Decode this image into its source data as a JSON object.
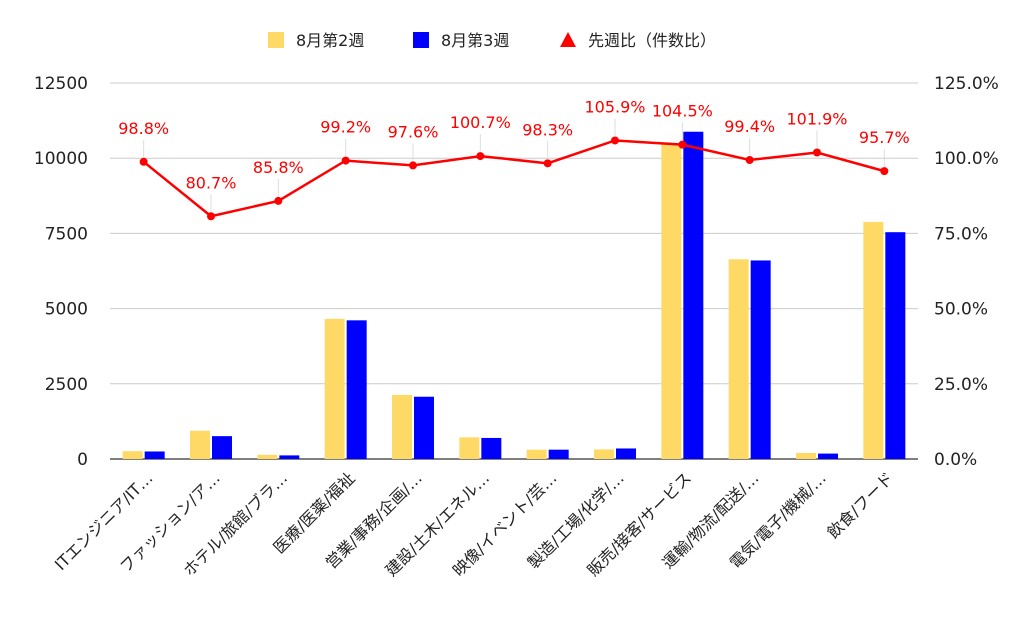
{
  "chart_data": {
    "type": "bar",
    "categories": [
      "ITエンジニア/IT…",
      "ファッション/ア…",
      "ホテル/旅館/ブラ…",
      "医療/医薬/福祉",
      "営業/事務/企画/…",
      "建設/土木/エネル…",
      "映像/イベント/芸…",
      "製造/工場/化学/…",
      "販売/接客/サービス",
      "運輸/物流/配送/…",
      "電気/電子/機械/…",
      "飲食/フード"
    ],
    "series": [
      {
        "name": "8月第2週",
        "type": "bar",
        "axis": "left",
        "color": "#ffd966",
        "values": [
          260,
          940,
          140,
          4660,
          2130,
          720,
          310,
          320,
          10460,
          6640,
          200,
          7880
        ]
      },
      {
        "name": "8月第3週",
        "type": "bar",
        "axis": "left",
        "color": "#0000ff",
        "values": [
          250,
          760,
          120,
          4610,
          2070,
          700,
          310,
          350,
          10880,
          6600,
          180,
          7540
        ]
      },
      {
        "name": "先週比（件数比）",
        "type": "line",
        "axis": "right",
        "color": "#ff0000",
        "values": [
          98.8,
          80.7,
          85.8,
          99.2,
          97.6,
          100.7,
          98.3,
          105.9,
          104.5,
          99.4,
          101.9,
          95.7
        ],
        "labels": [
          "98.8%",
          "80.7%",
          "85.8%",
          "99.2%",
          "97.6%",
          "100.7%",
          "98.3%",
          "105.9%",
          "104.5%",
          "99.4%",
          "101.9%",
          "95.7%"
        ]
      }
    ],
    "y_left": {
      "min": 0,
      "max": 12500,
      "ticks": [
        0,
        2500,
        5000,
        7500,
        10000,
        12500
      ],
      "tick_labels": [
        "0",
        "2500",
        "5000",
        "7500",
        "10000",
        "12500"
      ]
    },
    "y_right": {
      "min": 0,
      "max": 125,
      "ticks": [
        0,
        25,
        50,
        75,
        100,
        125
      ],
      "tick_labels": [
        "0.0%",
        "25.0%",
        "50.0%",
        "75.0%",
        "100.0%",
        "125.0%"
      ]
    },
    "grid": true,
    "legend": "top-center"
  }
}
